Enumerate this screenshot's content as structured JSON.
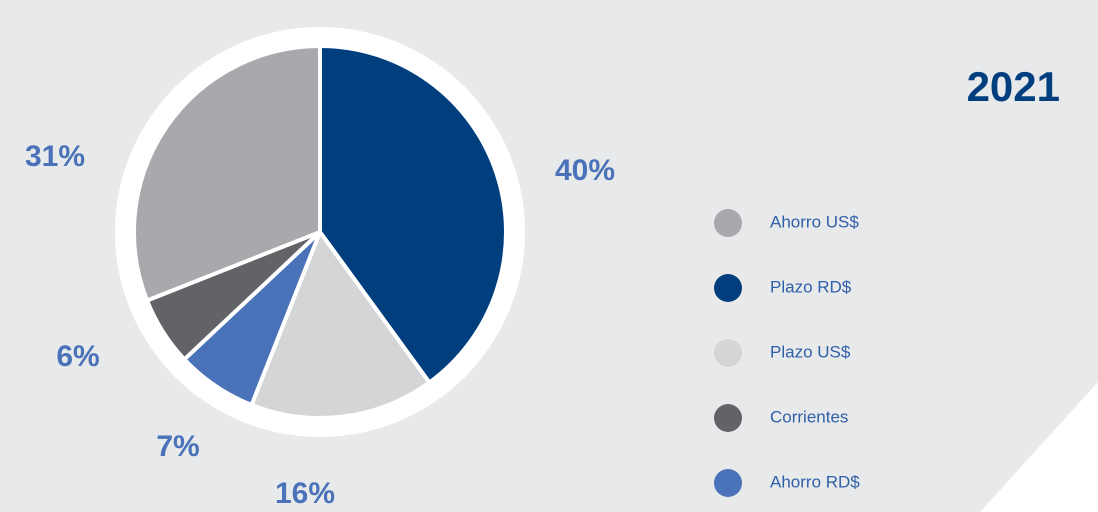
{
  "chart_data": {
    "type": "pie",
    "title": "2021",
    "categories": [
      "Plazo RD$",
      "Plazo US$",
      "Ahorro RD$",
      "Corrientes",
      "Ahorro US$"
    ],
    "values": [
      40,
      16,
      7,
      6,
      31
    ],
    "value_labels": [
      "40%",
      "16%",
      "7%",
      "6%",
      "31%"
    ],
    "colors": [
      "#003e7e",
      "#d4d5d7",
      "#4a72b8",
      "#626366",
      "#a8a9ad"
    ],
    "legend": "right"
  }
}
